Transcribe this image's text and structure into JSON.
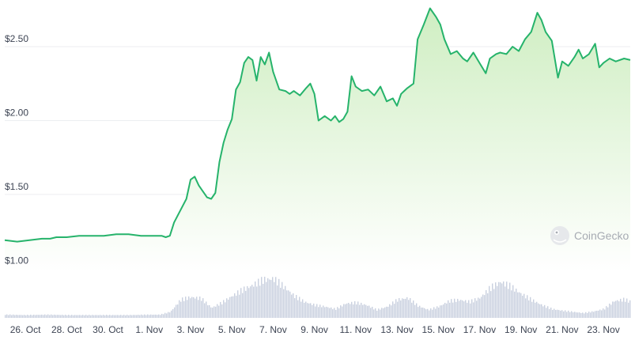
{
  "watermark": {
    "text": "CoinGecko",
    "icon": "gecko-logo-icon"
  },
  "colors": {
    "line": "#26b36b",
    "area_top": "#cfeec2",
    "area_bottom": "#ffffff",
    "grid": "#eceef1",
    "volume": "#c9d0df",
    "text": "#3d4453"
  },
  "chart_data": [
    {
      "type": "line",
      "title": "",
      "xlabel": "",
      "ylabel": "",
      "grid": true,
      "fill": "area",
      "ylim": [
        0.98,
        2.8
      ],
      "y_ticks": [
        1.0,
        1.5,
        2.0,
        2.5
      ],
      "y_tick_labels": [
        "$1.00",
        "$1.50",
        "$2.00",
        "$2.50"
      ],
      "x_range": [
        0.0,
        30.3
      ],
      "x_ticks": [
        1,
        3,
        5,
        7,
        9,
        11,
        13,
        15,
        17,
        19,
        21,
        23,
        25,
        27,
        29
      ],
      "x_tick_labels": [
        "26. Oct",
        "28. Oct",
        "30. Oct",
        "1. Nov",
        "3. Nov",
        "5. Nov",
        "7. Nov",
        "9. Nov",
        "11. Nov",
        "13. Nov",
        "15. Nov",
        "17. Nov",
        "19. Nov",
        "21. Nov",
        "23. Nov"
      ],
      "x": [
        0.0,
        0.6,
        1.2,
        1.8,
        2.2,
        2.5,
        3.0,
        3.6,
        4.2,
        4.8,
        5.4,
        6.0,
        6.6,
        7.2,
        7.6,
        7.8,
        8.0,
        8.2,
        8.5,
        8.8,
        9.0,
        9.2,
        9.4,
        9.6,
        9.8,
        10.0,
        10.2,
        10.4,
        10.6,
        10.8,
        11.0,
        11.2,
        11.4,
        11.6,
        11.8,
        12.0,
        12.2,
        12.4,
        12.6,
        12.8,
        13.0,
        13.3,
        13.6,
        13.8,
        14.0,
        14.3,
        14.6,
        14.8,
        15.0,
        15.2,
        15.5,
        15.8,
        16.0,
        16.2,
        16.4,
        16.6,
        16.8,
        17.0,
        17.3,
        17.6,
        17.9,
        18.2,
        18.5,
        18.8,
        19.0,
        19.2,
        19.5,
        19.8,
        20.0,
        20.3,
        20.6,
        20.9,
        21.1,
        21.3,
        21.6,
        21.9,
        22.2,
        22.4,
        22.7,
        23.0,
        23.3,
        23.5,
        23.8,
        24.0,
        24.3,
        24.6,
        24.9,
        25.2,
        25.5,
        25.8,
        26.0,
        26.2,
        26.5,
        26.8,
        27.0,
        27.3,
        27.6,
        27.8,
        28.0,
        28.3,
        28.6,
        28.8,
        29.0,
        29.3,
        29.6,
        30.0,
        30.3
      ],
      "y": [
        1.19,
        1.18,
        1.19,
        1.2,
        1.2,
        1.21,
        1.21,
        1.22,
        1.22,
        1.22,
        1.23,
        1.23,
        1.22,
        1.22,
        1.22,
        1.21,
        1.22,
        1.31,
        1.39,
        1.47,
        1.6,
        1.62,
        1.56,
        1.52,
        1.48,
        1.47,
        1.51,
        1.72,
        1.85,
        1.94,
        2.01,
        2.21,
        2.26,
        2.39,
        2.43,
        2.41,
        2.27,
        2.43,
        2.38,
        2.46,
        2.33,
        2.21,
        2.2,
        2.18,
        2.2,
        2.17,
        2.22,
        2.25,
        2.18,
        2.0,
        2.03,
        2.0,
        2.03,
        1.99,
        2.01,
        2.06,
        2.3,
        2.23,
        2.2,
        2.21,
        2.17,
        2.23,
        2.13,
        2.15,
        2.1,
        2.18,
        2.22,
        2.25,
        2.55,
        2.65,
        2.76,
        2.7,
        2.65,
        2.55,
        2.45,
        2.47,
        2.42,
        2.4,
        2.46,
        2.39,
        2.32,
        2.42,
        2.45,
        2.46,
        2.45,
        2.5,
        2.47,
        2.55,
        2.6,
        2.73,
        2.68,
        2.6,
        2.54,
        2.29,
        2.4,
        2.37,
        2.43,
        2.48,
        2.42,
        2.45,
        2.52,
        2.36,
        2.39,
        2.42,
        2.4,
        2.42,
        2.41
      ]
    },
    {
      "type": "bar",
      "title": "",
      "series_label": "",
      "note": "volume histogram below price, no axis values printed",
      "x": [
        0.0,
        1.0,
        2.0,
        3.0,
        4.0,
        5.0,
        6.0,
        7.0,
        7.5,
        8.0,
        8.5,
        9.0,
        9.5,
        10.0,
        10.5,
        11.0,
        11.5,
        12.0,
        12.5,
        13.0,
        13.5,
        14.0,
        14.5,
        15.0,
        15.5,
        16.0,
        16.5,
        17.0,
        17.5,
        18.0,
        18.5,
        19.0,
        19.5,
        20.0,
        20.5,
        21.0,
        21.5,
        22.0,
        22.5,
        23.0,
        23.5,
        24.0,
        24.5,
        25.0,
        25.5,
        26.0,
        26.5,
        27.0,
        27.5,
        28.0,
        28.5,
        29.0,
        29.5,
        30.0,
        30.3
      ],
      "values": [
        0.08,
        0.07,
        0.08,
        0.07,
        0.07,
        0.07,
        0.07,
        0.08,
        0.08,
        0.15,
        0.45,
        0.52,
        0.48,
        0.25,
        0.38,
        0.55,
        0.7,
        0.82,
        0.95,
        0.98,
        0.78,
        0.55,
        0.4,
        0.32,
        0.28,
        0.22,
        0.36,
        0.38,
        0.32,
        0.2,
        0.28,
        0.45,
        0.5,
        0.3,
        0.2,
        0.28,
        0.42,
        0.45,
        0.4,
        0.5,
        0.75,
        0.9,
        0.78,
        0.6,
        0.45,
        0.32,
        0.22,
        0.18,
        0.15,
        0.12,
        0.16,
        0.22,
        0.42,
        0.46,
        0.4
      ]
    }
  ]
}
